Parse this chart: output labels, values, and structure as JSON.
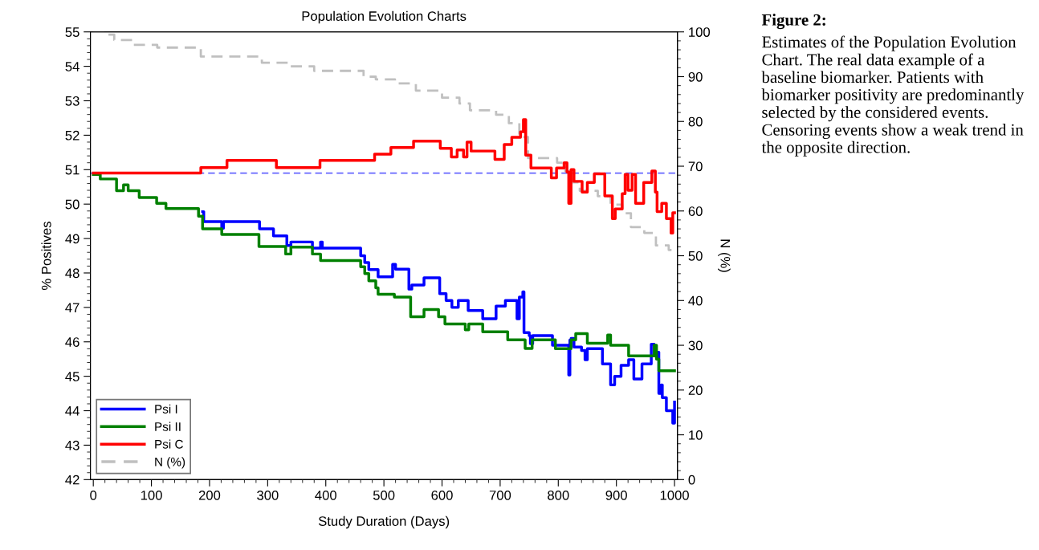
{
  "chart_data": {
    "type": "step",
    "title": "Population Evolution Charts",
    "xlabel": "Study Duration (Days)",
    "ylabel": "% Positives",
    "y2label": "N (%)",
    "xlim": [
      -5,
      1005
    ],
    "xticks": [
      0,
      100,
      200,
      300,
      400,
      500,
      600,
      700,
      800,
      900,
      1000
    ],
    "ylim": [
      42,
      55
    ],
    "yticks": [
      42,
      43,
      44,
      45,
      46,
      47,
      48,
      49,
      50,
      51,
      52,
      53,
      54,
      55
    ],
    "y2lim": [
      0,
      100
    ],
    "y2ticks": [
      0,
      10,
      20,
      30,
      40,
      50,
      60,
      70,
      80,
      90,
      100
    ],
    "legend": "bottom left",
    "grid": false,
    "line_style": "solid",
    "ref_lines": [
      {
        "axis": "y",
        "value": 50.9,
        "label": null,
        "color": "#6666ff",
        "line_style": "dashed"
      }
    ],
    "annotations": [
      "Figure 2:",
      "Estimates of the Population Evolution Chart. The real data example of a baseline biomarker. Patients with biomarker positivity are predominantly selected by the considered events. Censoring events show a weak trend in the opposite direction."
    ],
    "series": [
      {
        "name": "Psi I",
        "color": "#0000ff",
        "x": [
          188,
          190,
          221,
          224,
          286,
          310,
          333,
          340,
          377,
          391,
          394,
          460,
          467,
          474,
          490,
          515,
          520,
          543,
          548,
          569,
          596,
          607,
          617,
          628,
          645,
          670,
          693,
          709,
          729,
          733,
          739,
          741,
          750,
          752,
          756,
          790,
          818,
          820,
          822,
          827,
          840,
          846,
          850,
          876,
          890,
          897,
          908,
          921,
          930,
          944,
          960,
          965,
          973,
          977,
          979,
          986,
          997,
          1000
        ],
        "values": [
          49.78,
          49.49,
          49.3,
          49.49,
          49.28,
          49.08,
          48.8,
          48.9,
          48.72,
          48.9,
          48.72,
          48.5,
          48.3,
          48.1,
          47.89,
          48.25,
          48.11,
          47.53,
          47.65,
          47.86,
          47.4,
          47.2,
          47.0,
          47.2,
          46.91,
          46.67,
          47.04,
          47.2,
          46.67,
          47.3,
          47.45,
          46.27,
          46.18,
          45.95,
          46.18,
          45.9,
          45.04,
          46.05,
          46.1,
          45.85,
          45.75,
          45.48,
          45.8,
          45.36,
          44.75,
          45.0,
          45.32,
          45.48,
          44.92,
          45.36,
          45.93,
          45.7,
          44.5,
          44.75,
          44.38,
          44.0,
          43.64,
          44.25
        ]
      },
      {
        "name": "Psi II",
        "color": "#008000",
        "x": [
          0,
          12,
          40,
          52,
          60,
          79,
          109,
          125,
          181,
          188,
          221,
          285,
          331,
          340,
          377,
          391,
          460,
          467,
          474,
          486,
          490,
          518,
          546,
          569,
          594,
          605,
          640,
          646,
          670,
          713,
          743,
          755,
          795,
          822,
          830,
          850,
          885,
          890,
          921,
          965,
          969,
          973,
          1000
        ],
        "values": [
          50.86,
          50.73,
          50.39,
          50.56,
          50.39,
          50.19,
          50.02,
          49.87,
          49.65,
          49.28,
          49.12,
          48.77,
          48.55,
          48.75,
          48.55,
          48.36,
          48.18,
          47.98,
          47.77,
          47.57,
          47.38,
          47.3,
          46.73,
          46.94,
          46.73,
          46.52,
          46.35,
          46.52,
          46.29,
          46.06,
          45.81,
          46.06,
          45.8,
          46.06,
          46.24,
          45.96,
          46.2,
          45.9,
          45.59,
          45.9,
          45.5,
          45.16,
          45.16
        ]
      },
      {
        "name": "Psi C",
        "color": "#ff0000",
        "x": [
          0,
          185,
          230,
          315,
          390,
          484,
          512,
          551,
          597,
          616,
          626,
          637,
          643,
          650,
          691,
          707,
          720,
          735,
          740,
          744,
          753,
          788,
          797,
          810,
          815,
          818,
          822,
          827,
          841,
          850,
          862,
          880,
          893,
          898,
          910,
          915,
          920,
          927,
          933,
          947,
          961,
          967,
          970,
          978,
          986,
          994,
          997,
          1000
        ],
        "values": [
          50.9,
          51.06,
          51.27,
          51.06,
          51.27,
          51.45,
          51.64,
          51.83,
          51.62,
          51.37,
          51.57,
          51.37,
          51.8,
          51.54,
          51.3,
          51.73,
          51.94,
          52.1,
          52.45,
          51.42,
          51.05,
          50.76,
          51.05,
          51.2,
          50.93,
          50.02,
          51.0,
          50.66,
          50.35,
          50.63,
          50.88,
          50.24,
          49.58,
          49.86,
          50.3,
          50.86,
          50.4,
          50.86,
          50.02,
          50.63,
          50.96,
          50.35,
          49.78,
          50.02,
          49.58,
          49.16,
          49.75,
          49.75
        ]
      },
      {
        "name": "N (%)",
        "color": "#c0c0c0",
        "axis": "y2",
        "line_style": "dashed",
        "x": [
          0,
          23,
          36,
          68,
          110,
          185,
          290,
          335,
          380,
          465,
          486,
          519,
          555,
          600,
          630,
          648,
          693,
          715,
          733,
          748,
          798,
          812,
          823,
          837,
          868,
          890,
          910,
          925,
          948,
          968,
          990,
          1000
        ],
        "values": [
          100,
          99.4,
          98.2,
          97.1,
          96.5,
          94.5,
          93.1,
          92.3,
          91.3,
          90.0,
          89.4,
          88.5,
          86.9,
          85.3,
          84.0,
          82.5,
          81.5,
          79.6,
          76.5,
          71.8,
          70.8,
          68.9,
          66.4,
          64.5,
          63.3,
          61.4,
          59.5,
          56.4,
          55.1,
          52.3,
          51.3,
          51.3
        ]
      }
    ]
  }
}
